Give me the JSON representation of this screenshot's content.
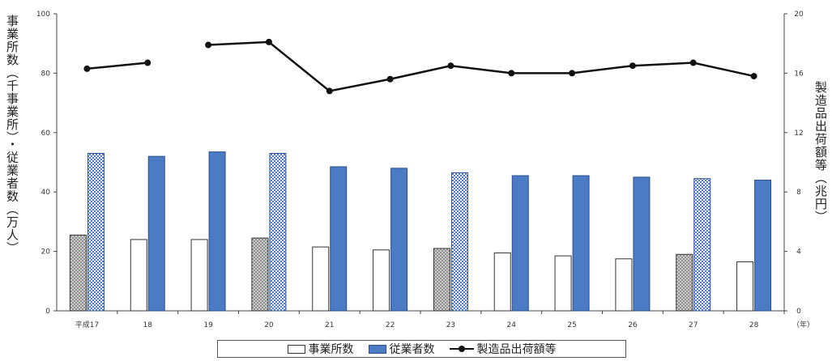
{
  "chart_data": {
    "type": "bar",
    "categories": [
      "平成17",
      "18",
      "19",
      "20",
      "21",
      "22",
      "23",
      "24",
      "25",
      "26",
      "27",
      "28"
    ],
    "x_unit": "（年）",
    "left_axis": {
      "label": "事業所数（千事業所）・従業者数（万人）",
      "ylim": [
        0,
        100
      ],
      "ticks": [
        0,
        20,
        40,
        60,
        80,
        100
      ]
    },
    "right_axis": {
      "label": "製造品出荷額等（兆円）",
      "ylim": [
        0,
        20
      ],
      "ticks": [
        0,
        4,
        8,
        12,
        16,
        20
      ]
    },
    "series": [
      {
        "name": "事業所数",
        "axis": "left",
        "values": [
          25.5,
          24,
          24,
          24.5,
          21.5,
          20.5,
          21,
          19.5,
          18.5,
          17.5,
          19,
          16.5
        ]
      },
      {
        "name": "従業者数",
        "axis": "left",
        "values": [
          53,
          52,
          53.5,
          53,
          48.5,
          48,
          46.5,
          45.5,
          45.5,
          45,
          44.5,
          44
        ]
      },
      {
        "name": "製造品出荷額等",
        "axis": "right",
        "type": "line",
        "values": [
          16.3,
          16.7,
          17.9,
          18.1,
          14.8,
          15.6,
          16.5,
          16,
          16,
          16.5,
          16.7,
          15.8
        ],
        "segments": [
          [
            0,
            1
          ],
          [
            2,
            11
          ]
        ]
      }
    ],
    "hatched_years": [
      0,
      3,
      6,
      10
    ],
    "grid": false,
    "legend": "bottom"
  },
  "legend": {
    "item1": "事業所数",
    "item2": "従業者数",
    "item3": "製造品出荷額等"
  },
  "colors": {
    "blue_bar": "#4a7bc4",
    "blue_edge": "#2a4e8c",
    "line": "#111111",
    "hatch": "#888888"
  }
}
